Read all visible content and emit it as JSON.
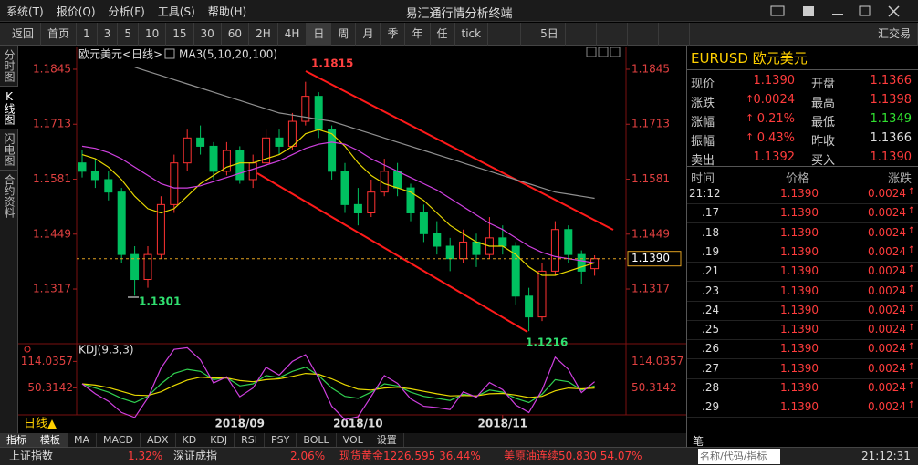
{
  "window_title": "易汇通行情分析终端",
  "menu": [
    "系统(T)",
    "报价(Q)",
    "分析(F)",
    "工具(S)",
    "帮助(H)"
  ],
  "toolbar": {
    "back": "返回",
    "home": "首页",
    "periods": [
      "1",
      "3",
      "5",
      "10",
      "15",
      "30",
      "60",
      "2H",
      "4H",
      "日",
      "周",
      "月",
      "季",
      "年",
      "任",
      "tick"
    ],
    "days": "5日",
    "trade": "汇交易"
  },
  "side_tabs": [
    "分时图",
    "K线图",
    "闪电图",
    "合约资料"
  ],
  "chart_data": {
    "type": "candlestick",
    "title": "欧元美元<日线>",
    "indicator": "MA3(5,10,20,100)",
    "sub_indicator": "KDJ(9,3,3)",
    "period_label": "日线▲",
    "categories": [
      null,
      null,
      null,
      null,
      null,
      null,
      null,
      null,
      null,
      null,
      null,
      null,
      "2018/09",
      null,
      null,
      null,
      null,
      null,
      null,
      null,
      null,
      "2018/10",
      null,
      null,
      null,
      null,
      null,
      null,
      null,
      null,
      null,
      null,
      "2018/11",
      null,
      null,
      null,
      null,
      null,
      null,
      null
    ],
    "candles": [
      [
        1.162,
        1.165,
        1.1585,
        1.16
      ],
      [
        1.16,
        1.163,
        1.156,
        1.158
      ],
      [
        1.158,
        1.16,
        1.153,
        1.155
      ],
      [
        1.155,
        1.156,
        1.138,
        1.14
      ],
      [
        1.14,
        1.142,
        1.1301,
        1.134
      ],
      [
        1.134,
        1.142,
        1.132,
        1.14
      ],
      [
        1.14,
        1.154,
        1.139,
        1.152
      ],
      [
        1.152,
        1.164,
        1.15,
        1.162
      ],
      [
        1.162,
        1.17,
        1.16,
        1.168
      ],
      [
        1.168,
        1.171,
        1.164,
        1.166
      ],
      [
        1.166,
        1.167,
        1.158,
        1.16
      ],
      [
        1.16,
        1.167,
        1.159,
        1.165
      ],
      [
        1.165,
        1.166,
        1.157,
        1.158
      ],
      [
        1.158,
        1.164,
        1.156,
        1.162
      ],
      [
        1.162,
        1.17,
        1.161,
        1.168
      ],
      [
        1.168,
        1.17,
        1.164,
        1.166
      ],
      [
        1.166,
        1.174,
        1.165,
        1.172
      ],
      [
        1.172,
        1.1815,
        1.171,
        1.178
      ],
      [
        1.178,
        1.179,
        1.168,
        1.17
      ],
      [
        1.17,
        1.171,
        1.158,
        1.16
      ],
      [
        1.16,
        1.162,
        1.15,
        1.152
      ],
      [
        1.152,
        1.156,
        1.147,
        1.15
      ],
      [
        1.15,
        1.158,
        1.149,
        1.155
      ],
      [
        1.155,
        1.163,
        1.154,
        1.16
      ],
      [
        1.16,
        1.162,
        1.154,
        1.156
      ],
      [
        1.156,
        1.157,
        1.148,
        1.15
      ],
      [
        1.15,
        1.152,
        1.143,
        1.145
      ],
      [
        1.145,
        1.148,
        1.14,
        1.142
      ],
      [
        1.142,
        1.144,
        1.136,
        1.139
      ],
      [
        1.139,
        1.146,
        1.138,
        1.143
      ],
      [
        1.143,
        1.145,
        1.137,
        1.14
      ],
      [
        1.14,
        1.149,
        1.139,
        1.144
      ],
      [
        1.144,
        1.147,
        1.14,
        1.142
      ],
      [
        1.142,
        1.143,
        1.128,
        1.13
      ],
      [
        1.13,
        1.132,
        1.1216,
        1.125
      ],
      [
        1.125,
        1.138,
        1.124,
        1.136
      ],
      [
        1.136,
        1.148,
        1.135,
        1.146
      ],
      [
        1.146,
        1.147,
        1.138,
        1.14
      ],
      [
        1.14,
        1.141,
        1.133,
        1.136
      ],
      [
        1.1366,
        1.1398,
        1.1349,
        1.139
      ]
    ],
    "up_color": "#ff3232",
    "down_color": "#00c060",
    "series": [
      {
        "color": "#e8d800",
        "values": [
          1.164,
          1.163,
          1.161,
          1.158,
          1.154,
          1.151,
          1.15,
          1.151,
          1.154,
          1.157,
          1.159,
          1.161,
          1.162,
          1.162,
          1.163,
          1.164,
          1.166,
          1.169,
          1.17,
          1.169,
          1.166,
          1.162,
          1.159,
          1.157,
          1.156,
          1.155,
          1.153,
          1.15,
          1.147,
          1.145,
          1.143,
          1.142,
          1.142,
          1.14,
          1.137,
          1.135,
          1.135,
          1.136,
          1.137,
          1.138
        ]
      },
      {
        "color": "#d040e0",
        "values": [
          1.166,
          1.1655,
          1.1645,
          1.163,
          1.161,
          1.159,
          1.157,
          1.156,
          1.156,
          1.1565,
          1.1575,
          1.1585,
          1.1595,
          1.1605,
          1.1615,
          1.1625,
          1.164,
          1.1655,
          1.1665,
          1.167,
          1.1665,
          1.165,
          1.163,
          1.1615,
          1.16,
          1.1585,
          1.157,
          1.1555,
          1.1535,
          1.1515,
          1.1495,
          1.1475,
          1.146,
          1.144,
          1.142,
          1.1405,
          1.1395,
          1.139,
          1.1385,
          1.138
        ]
      },
      {
        "color": "#909090",
        "values": [
          null,
          null,
          null,
          null,
          1.185,
          1.184,
          1.183,
          1.182,
          1.181,
          1.18,
          1.179,
          1.178,
          1.177,
          1.176,
          1.175,
          1.174,
          1.1735,
          1.173,
          1.1725,
          1.172,
          1.171,
          1.17,
          1.169,
          1.168,
          1.167,
          1.166,
          1.165,
          1.164,
          1.163,
          1.162,
          1.161,
          1.16,
          1.159,
          1.158,
          1.157,
          1.156,
          1.155,
          1.1545,
          1.154,
          1.1535
        ]
      }
    ],
    "ylim": [
      1.119,
      1.188
    ],
    "yticks": [
      1.1845,
      1.1713,
      1.1581,
      1.1449,
      1.1317
    ],
    "last_price": 1.139,
    "last_label": "1.1390",
    "annotations": [
      "1.1815",
      "1.1301",
      "1.1216"
    ],
    "kdj_series": [
      {
        "color": "#30d050",
        "values": [
          60,
          50,
          40,
          25,
          15,
          30,
          60,
          85,
          95,
          90,
          70,
          75,
          55,
          60,
          80,
          75,
          90,
          100,
          80,
          50,
          30,
          25,
          40,
          60,
          55,
          40,
          30,
          25,
          20,
          35,
          30,
          45,
          40,
          25,
          15,
          35,
          70,
          65,
          45,
          55
        ]
      },
      {
        "color": "#e8d800",
        "values": [
          60,
          57,
          51,
          42,
          33,
          32,
          41,
          56,
          69,
          76,
          74,
          74,
          68,
          65,
          70,
          72,
          78,
          85,
          83,
          72,
          58,
          47,
          45,
          50,
          52,
          48,
          42,
          36,
          31,
          32,
          31,
          36,
          37,
          33,
          27,
          30,
          43,
          50,
          48,
          50
        ]
      },
      {
        "color": "#d040e0",
        "values": [
          60,
          36,
          18,
          -9,
          -21,
          26,
          98,
          143,
          147,
          118,
          62,
          77,
          29,
          50,
          100,
          81,
          114,
          130,
          74,
          6,
          -26,
          -19,
          30,
          80,
          61,
          24,
          6,
          3,
          -2,
          41,
          28,
          63,
          46,
          9,
          -9,
          45,
          124,
          95,
          39,
          65
        ]
      }
    ],
    "y2lim": [
      -30,
      150
    ],
    "y2ticks": [
      114.0357,
      50.3142
    ]
  },
  "indicator_tabs": [
    "指标",
    "模板",
    "MA",
    "MACD",
    "ADX",
    "KD",
    "KDJ",
    "RSI",
    "PSY",
    "BOLL",
    "VOL",
    "设置"
  ],
  "quote": {
    "symbol": "EURUSD 欧元美元",
    "rows": [
      [
        "现价",
        "1.1390",
        "开盘",
        "1.1366"
      ],
      [
        "涨跌",
        "0.0024",
        "最高",
        "1.1398"
      ],
      [
        "涨幅",
        "0.21%",
        "最低",
        "1.1349"
      ],
      [
        "振幅",
        "0.43%",
        "昨收",
        "1.1366"
      ],
      [
        "卖出",
        "1.1392",
        "买入",
        "1.1390"
      ]
    ]
  },
  "ticks_header": [
    "时间",
    "价格",
    "涨跌"
  ],
  "ticks": [
    [
      "21:12",
      "1.1390",
      "0.0024"
    ],
    [
      ".17",
      "1.1390",
      "0.0024"
    ],
    [
      ".18",
      "1.1390",
      "0.0024"
    ],
    [
      ".19",
      "1.1390",
      "0.0024"
    ],
    [
      ".21",
      "1.1390",
      "0.0024"
    ],
    [
      ".23",
      "1.1390",
      "0.0024"
    ],
    [
      ".24",
      "1.1390",
      "0.0024"
    ],
    [
      ".25",
      "1.1390",
      "0.0024"
    ],
    [
      ".26",
      "1.1390",
      "0.0024"
    ],
    [
      ".27",
      "1.1390",
      "0.0024"
    ],
    [
      ".28",
      "1.1390",
      "0.0024"
    ],
    [
      ".29",
      "1.1390",
      "0.0024"
    ]
  ],
  "right_tab": "笔",
  "status": {
    "items": [
      [
        "上证指数",
        "1.32%"
      ],
      [
        "深证成指",
        "2.06%"
      ]
    ],
    "gold": "现货黄金1226.595 36.44%",
    "oil": "美原油连续50.830 54.07%",
    "search": "名称/代码/指标",
    "time": "21:12:31"
  }
}
